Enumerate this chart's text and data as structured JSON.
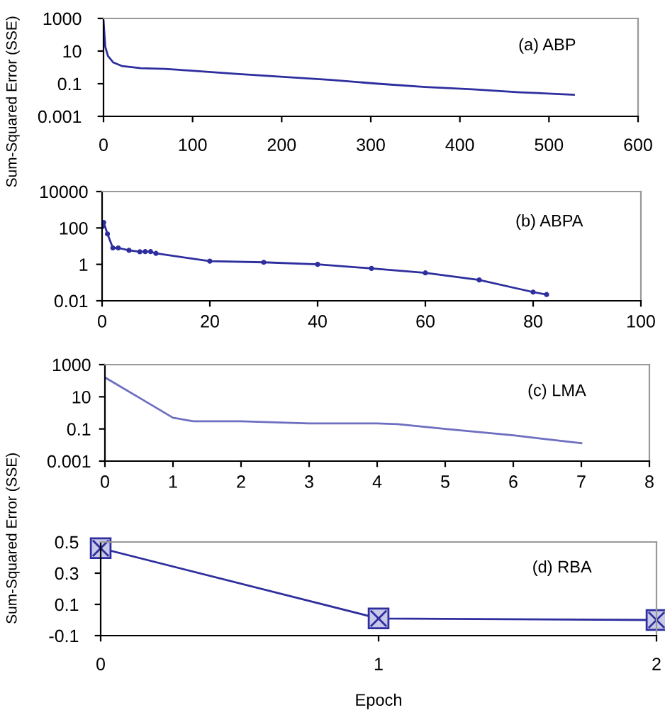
{
  "chart_data": [
    {
      "type": "line",
      "ylabel": "Sum-Squared Error (SSE)",
      "annotations": [
        "(a) ABP"
      ],
      "log": "y",
      "marker": "none",
      "xlim": [
        0,
        600
      ],
      "xticks": [
        0,
        100,
        200,
        300,
        400,
        500,
        600
      ],
      "ylim": [
        0.001,
        1000
      ],
      "yticks": [
        0.001,
        0.1,
        10,
        1000
      ],
      "grid": false,
      "series": [
        {
          "color": "#2e2e9e",
          "x": [
            0,
            2,
            5,
            11,
            21,
            42,
            69,
            96,
            149,
            202,
            255,
            308,
            361,
            414,
            467,
            528
          ],
          "values": [
            700,
            18,
            5,
            2,
            1.2,
            0.9,
            0.8,
            0.65,
            0.4,
            0.26,
            0.17,
            0.1,
            0.063,
            0.045,
            0.03,
            0.021
          ]
        }
      ]
    },
    {
      "type": "line",
      "annotations": [
        "(b) ABPA"
      ],
      "log": "y",
      "marker": "circle",
      "xlim": [
        0,
        100
      ],
      "xticks": [
        0,
        20,
        40,
        60,
        80,
        100
      ],
      "ylim": [
        0.01,
        10000
      ],
      "yticks": [
        0.01,
        1,
        100,
        10000
      ],
      "grid": false,
      "series": [
        {
          "color": "#2e2e9e",
          "x": [
            0,
            0.3,
            1,
            2,
            3,
            5,
            7,
            8,
            9,
            10,
            20,
            30,
            40,
            50,
            60,
            70,
            80,
            82.5
          ],
          "values": [
            115,
            200,
            47,
            8,
            8,
            5.9,
            4.9,
            5,
            5,
            4,
            1.5,
            1.3,
            1.0,
            0.6,
            0.34,
            0.14,
            0.03,
            0.022
          ]
        }
      ]
    },
    {
      "type": "line",
      "ylabel": "Sum-Squared Error (SSE)",
      "annotations": [
        "(c) LMA"
      ],
      "log": "y",
      "marker": "none",
      "xlim": [
        0,
        8
      ],
      "xticks": [
        0,
        1,
        2,
        3,
        4,
        5,
        6,
        7,
        8
      ],
      "ylim": [
        0.001,
        1000
      ],
      "yticks": [
        0.001,
        0.1,
        10,
        1000
      ],
      "grid": false,
      "series": [
        {
          "color": "#6e6ec0",
          "x": [
            0,
            0.5,
            1,
            1.3,
            2,
            3,
            4,
            4.3,
            5,
            6,
            7
          ],
          "values": [
            160,
            9,
            0.5,
            0.3,
            0.3,
            0.22,
            0.22,
            0.2,
            0.1,
            0.04,
            0.013
          ]
        }
      ]
    },
    {
      "type": "line",
      "xlabel": "Epoch",
      "annotations": [
        "(d) RBA"
      ],
      "marker": "square",
      "xlim": [
        0,
        2
      ],
      "xticks": [
        0,
        1,
        2
      ],
      "ylim": [
        -0.1,
        0.5
      ],
      "yticks": [
        -0.1,
        0.1,
        0.3,
        0.5
      ],
      "grid": false,
      "series": [
        {
          "color": "#2e2e9e",
          "x": [
            0,
            1,
            2
          ],
          "values": [
            0.46,
            0.01,
            0.0
          ]
        }
      ]
    }
  ]
}
